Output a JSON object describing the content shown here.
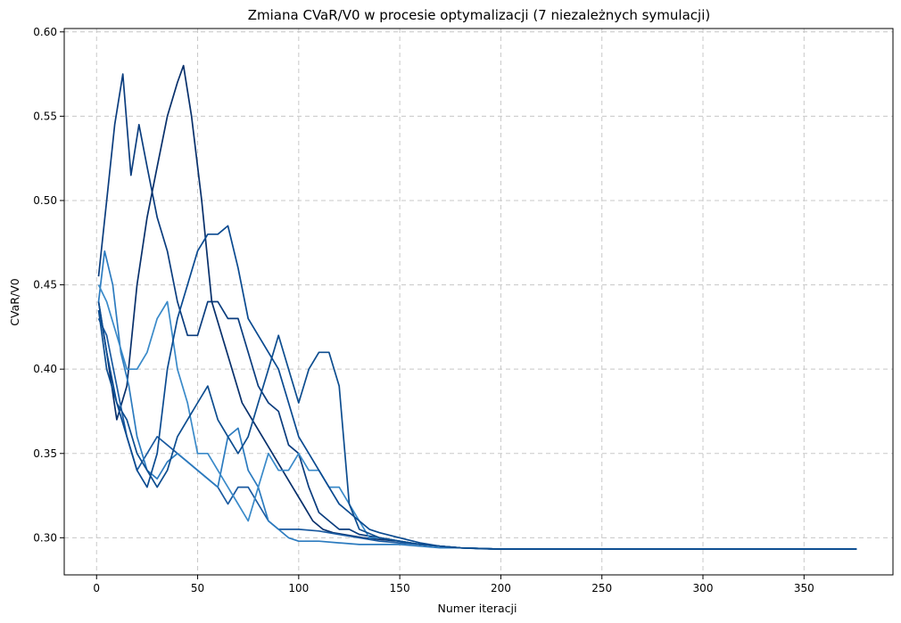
{
  "chart_data": {
    "type": "line",
    "title": "Zmiana CVaR/V0 w procesie optymalizacji (7 niezależnych symulacji)",
    "xlabel": "Numer iteracji",
    "ylabel": "CVaR/V0",
    "xlim": [
      -16,
      394
    ],
    "ylim": [
      0.278,
      0.602
    ],
    "xticks": [
      0,
      50,
      100,
      150,
      200,
      250,
      300,
      350
    ],
    "yticks": [
      0.3,
      0.35,
      0.4,
      0.45,
      0.5,
      0.55,
      0.6
    ],
    "ytick_labels": [
      "0.30",
      "0.35",
      "0.40",
      "0.45",
      "0.50",
      "0.55",
      "0.60"
    ],
    "grid": true,
    "series": [
      {
        "color": "#0b3d7e",
        "x": [
          1,
          5,
          9,
          13,
          17,
          21,
          25,
          30,
          35,
          40,
          45,
          50,
          55,
          60,
          65,
          70,
          75,
          80,
          85,
          90,
          95,
          100,
          105,
          110,
          115,
          120,
          125,
          130,
          140,
          150,
          160,
          170,
          180,
          190,
          200,
          250,
          300,
          376
        ],
        "y": [
          0.455,
          0.5,
          0.545,
          0.575,
          0.515,
          0.545,
          0.52,
          0.49,
          0.47,
          0.44,
          0.42,
          0.42,
          0.44,
          0.44,
          0.43,
          0.43,
          0.41,
          0.39,
          0.38,
          0.375,
          0.355,
          0.35,
          0.33,
          0.315,
          0.31,
          0.305,
          0.305,
          0.302,
          0.3,
          0.298,
          0.296,
          0.295,
          0.294,
          0.2935,
          0.2933,
          0.2933,
          0.2933,
          0.2933
        ]
      },
      {
        "color": "#08306b",
        "x": [
          1,
          5,
          10,
          15,
          20,
          25,
          30,
          35,
          40,
          43,
          47,
          52,
          57,
          62,
          67,
          72,
          77,
          82,
          87,
          92,
          97,
          102,
          107,
          112,
          117,
          122,
          127,
          132,
          140,
          150,
          160,
          170,
          180,
          200,
          250,
          300,
          376
        ],
        "y": [
          0.44,
          0.41,
          0.37,
          0.39,
          0.45,
          0.49,
          0.52,
          0.55,
          0.57,
          0.58,
          0.55,
          0.5,
          0.44,
          0.42,
          0.4,
          0.38,
          0.37,
          0.36,
          0.35,
          0.34,
          0.33,
          0.32,
          0.31,
          0.305,
          0.303,
          0.302,
          0.301,
          0.3,
          0.299,
          0.298,
          0.296,
          0.295,
          0.294,
          0.2933,
          0.2933,
          0.2933,
          0.2933
        ]
      },
      {
        "color": "#1a5aa0",
        "x": [
          1,
          5,
          10,
          15,
          20,
          25,
          30,
          35,
          40,
          45,
          50,
          55,
          60,
          65,
          70,
          75,
          80,
          85,
          90,
          95,
          100,
          110,
          120,
          130,
          140,
          150,
          160,
          170,
          180,
          200,
          250,
          300,
          376
        ],
        "y": [
          0.43,
          0.42,
          0.39,
          0.36,
          0.34,
          0.35,
          0.36,
          0.355,
          0.35,
          0.345,
          0.34,
          0.335,
          0.33,
          0.32,
          0.33,
          0.33,
          0.32,
          0.31,
          0.305,
          0.305,
          0.305,
          0.304,
          0.302,
          0.3,
          0.298,
          0.297,
          0.296,
          0.295,
          0.294,
          0.2933,
          0.2933,
          0.2933,
          0.2933
        ]
      },
      {
        "color": "#2c7bbf",
        "x": [
          1,
          4,
          8,
          12,
          16,
          20,
          25,
          30,
          35,
          40,
          45,
          50,
          55,
          60,
          65,
          70,
          75,
          80,
          85,
          90,
          95,
          100,
          110,
          120,
          130,
          140,
          150,
          160,
          170,
          180,
          200,
          250,
          300,
          376
        ],
        "y": [
          0.44,
          0.47,
          0.45,
          0.41,
          0.39,
          0.36,
          0.34,
          0.335,
          0.345,
          0.35,
          0.345,
          0.34,
          0.335,
          0.33,
          0.36,
          0.365,
          0.34,
          0.33,
          0.31,
          0.305,
          0.3,
          0.298,
          0.298,
          0.297,
          0.296,
          0.296,
          0.296,
          0.295,
          0.294,
          0.294,
          0.2933,
          0.2933,
          0.2933,
          0.2933
        ]
      },
      {
        "color": "#3a8ac9",
        "x": [
          1,
          5,
          10,
          15,
          20,
          25,
          30,
          35,
          40,
          45,
          50,
          55,
          60,
          65,
          70,
          75,
          80,
          85,
          90,
          95,
          100,
          105,
          110,
          115,
          120,
          125,
          130,
          135,
          140,
          150,
          160,
          170,
          180,
          200,
          250,
          300,
          376
        ],
        "y": [
          0.45,
          0.44,
          0.42,
          0.4,
          0.4,
          0.41,
          0.43,
          0.44,
          0.4,
          0.38,
          0.35,
          0.35,
          0.34,
          0.33,
          0.32,
          0.31,
          0.33,
          0.35,
          0.34,
          0.34,
          0.35,
          0.34,
          0.34,
          0.33,
          0.33,
          0.32,
          0.31,
          0.3,
          0.3,
          0.298,
          0.296,
          0.295,
          0.294,
          0.2933,
          0.2933,
          0.2933,
          0.2933
        ]
      },
      {
        "color": "#0a4a90",
        "x": [
          1,
          5,
          10,
          15,
          20,
          25,
          30,
          35,
          40,
          45,
          50,
          55,
          60,
          65,
          70,
          75,
          80,
          85,
          90,
          95,
          100,
          105,
          110,
          115,
          120,
          125,
          130,
          135,
          140,
          150,
          160,
          170,
          180,
          200,
          250,
          300,
          376
        ],
        "y": [
          0.44,
          0.41,
          0.38,
          0.36,
          0.34,
          0.33,
          0.35,
          0.4,
          0.43,
          0.45,
          0.47,
          0.48,
          0.48,
          0.485,
          0.46,
          0.43,
          0.42,
          0.41,
          0.4,
          0.38,
          0.36,
          0.35,
          0.34,
          0.33,
          0.32,
          0.315,
          0.31,
          0.305,
          0.303,
          0.3,
          0.297,
          0.295,
          0.294,
          0.2933,
          0.2933,
          0.2933,
          0.2933
        ]
      },
      {
        "color": "#0d4d8f",
        "x": [
          1,
          5,
          10,
          15,
          20,
          25,
          30,
          35,
          40,
          45,
          50,
          55,
          60,
          65,
          70,
          75,
          80,
          85,
          90,
          95,
          100,
          105,
          110,
          115,
          120,
          125,
          130,
          140,
          150,
          160,
          170,
          180,
          200,
          250,
          300,
          376
        ],
        "y": [
          0.435,
          0.4,
          0.38,
          0.37,
          0.35,
          0.34,
          0.33,
          0.34,
          0.36,
          0.37,
          0.38,
          0.39,
          0.37,
          0.36,
          0.35,
          0.36,
          0.38,
          0.4,
          0.42,
          0.4,
          0.38,
          0.4,
          0.41,
          0.41,
          0.39,
          0.32,
          0.305,
          0.3,
          0.298,
          0.296,
          0.295,
          0.294,
          0.2933,
          0.2933,
          0.2933,
          0.2933
        ]
      }
    ]
  }
}
